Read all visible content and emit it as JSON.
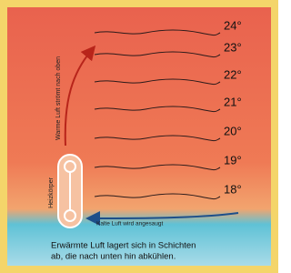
{
  "labels": {
    "rising_air": "Warme Luft strömt nach oben",
    "radiator": "Heizkörper",
    "cold_air": "Kalte Luft wird angesaugt"
  },
  "layers": [
    "24°",
    "23°",
    "22°",
    "21°",
    "20°",
    "19°",
    "18°"
  ],
  "caption": {
    "line1": "Erwärmte Luft lagert sich in Schichten",
    "line2": "ab, die nach unten hin abkühlen."
  }
}
